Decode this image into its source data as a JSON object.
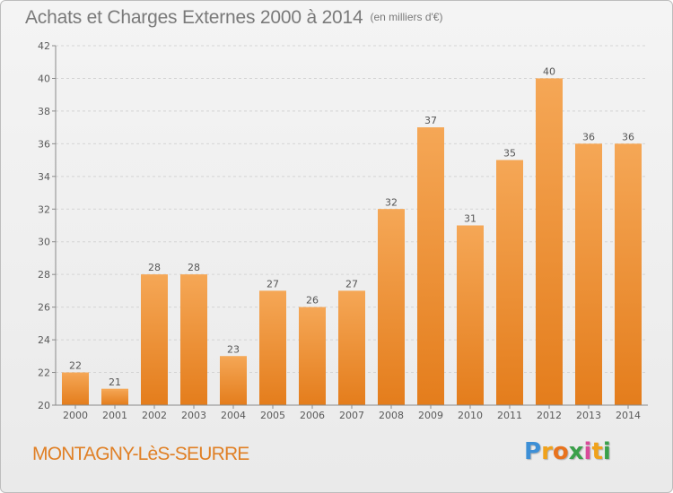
{
  "title": {
    "main": "Achats et Charges Externes 2000 à 2014",
    "unit": "(en milliers d'€)"
  },
  "commune": "MONTAGNY-LèS-SEURRE",
  "logo": {
    "letters": [
      "P",
      "r",
      "o",
      "x",
      "i",
      "t",
      "i"
    ],
    "colors": [
      "#3d8fd6",
      "#f0a21b",
      "#e8731e",
      "#3aa04a",
      "#d94b9a",
      "#f0a21b",
      "#3aa04a"
    ]
  },
  "colors": {
    "bar_light": "#f5a756",
    "bar_dark": "#e47d1c",
    "grid": "#d4d4d4",
    "axis": "#8a8a8a"
  },
  "chart_data": {
    "type": "bar",
    "categories": [
      "2000",
      "2001",
      "2002",
      "2003",
      "2004",
      "2005",
      "2006",
      "2007",
      "2008",
      "2009",
      "2010",
      "2011",
      "2012",
      "2013",
      "2014"
    ],
    "values": [
      22,
      21,
      28,
      28,
      23,
      27,
      26,
      27,
      32,
      37,
      31,
      35,
      40,
      36,
      36
    ],
    "ylim": [
      20,
      42
    ],
    "yticks": [
      20,
      22,
      24,
      26,
      28,
      30,
      32,
      34,
      36,
      38,
      40,
      42
    ],
    "grid": true
  }
}
